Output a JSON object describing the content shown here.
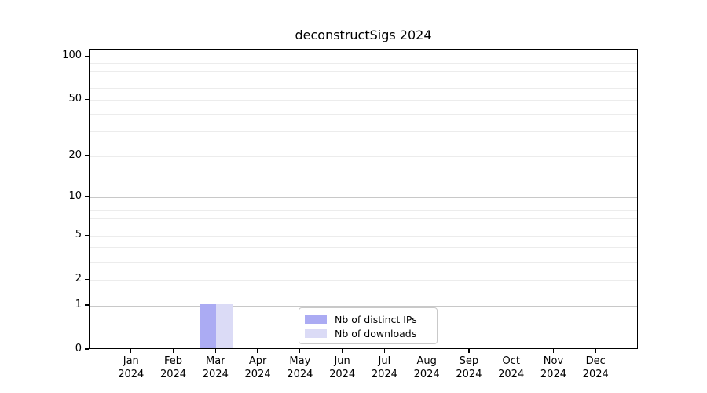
{
  "title": "deconstructSigs 2024",
  "colors": {
    "distinct_ips_bar": "#ababf3",
    "downloads_bar": "#dbdbf6",
    "major_gridline": "#c8c8c8",
    "minor_gridline": "#ececec",
    "axis_frame": "#000000",
    "legend_border": "#c9c9c9",
    "background": "#ffffff"
  },
  "chart_data": {
    "type": "bar",
    "title": "deconstructSigs 2024",
    "categories": [
      "Jan 2024",
      "Feb 2024",
      "Mar 2024",
      "Apr 2024",
      "May 2024",
      "Jun 2024",
      "Jul 2024",
      "Aug 2024",
      "Sep 2024",
      "Oct 2024",
      "Nov 2024",
      "Dec 2024"
    ],
    "series": [
      {
        "name": "Nb of distinct IPs",
        "color": "#ababf3",
        "values": [
          0,
          0,
          1,
          0,
          0,
          0,
          0,
          0,
          0,
          0,
          0,
          0
        ]
      },
      {
        "name": "Nb of downloads",
        "color": "#dbdbf6",
        "values": [
          0,
          0,
          1,
          0,
          0,
          0,
          0,
          0,
          0,
          0,
          0,
          0
        ]
      }
    ],
    "yscale": "log1p",
    "ylim": [
      0,
      113
    ],
    "xlabel": "",
    "ylabel": "",
    "ytick_values": [
      0,
      1,
      2,
      5,
      10,
      20,
      50,
      100
    ],
    "major_gridlines": [
      1,
      10,
      100
    ],
    "minor_gridlines": [
      2,
      3,
      4,
      5,
      6,
      7,
      8,
      9,
      20,
      30,
      40,
      50,
      60,
      70,
      80,
      90
    ],
    "grid": true,
    "legend_position": "lower center"
  },
  "legend": {
    "items": [
      {
        "label": "Nb of distinct IPs",
        "swatch": "distinct-ips-swatch"
      },
      {
        "label": "Nb of downloads",
        "swatch": "downloads-swatch"
      }
    ]
  }
}
